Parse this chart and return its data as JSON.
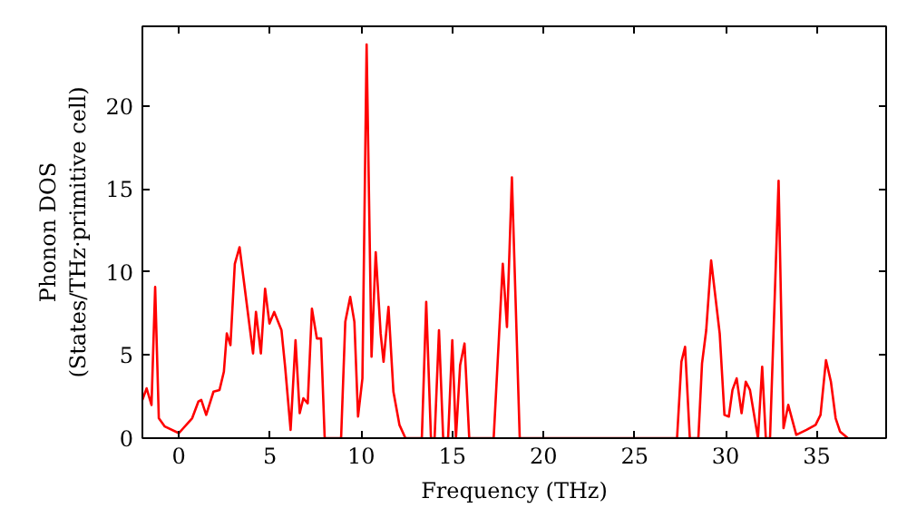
{
  "chart_data": {
    "type": "line",
    "xlabel": "Frequency (THz)",
    "ylabel": "Phonon DOS\n(States/THz·primitive cell)",
    "xlim": [
      -2,
      38.8
    ],
    "ylim": [
      0,
      24.8
    ],
    "xticks": [
      0,
      5,
      10,
      15,
      20,
      25,
      30,
      35
    ],
    "yticks": [
      0,
      5,
      10,
      15,
      20
    ],
    "grid": false,
    "marker": "none",
    "line_style": "solid",
    "series": [
      {
        "color": "#ff0000",
        "x": [
          -2,
          -1.77,
          -1.5,
          -1.3,
          -1.1,
          -0.77,
          0,
          0.73,
          1.07,
          1.23,
          1.5,
          1.9,
          2.23,
          2.47,
          2.63,
          2.83,
          3.07,
          3.33,
          4.07,
          4.23,
          4.5,
          4.73,
          4.97,
          5.23,
          5.63,
          5.83,
          6.13,
          6.4,
          6.63,
          6.83,
          7.07,
          7.3,
          7.57,
          7.8,
          8.0,
          8.9,
          9.13,
          9.4,
          9.63,
          9.83,
          10.07,
          10.3,
          10.57,
          10.8,
          11.07,
          11.23,
          11.5,
          11.77,
          12.1,
          12.43,
          13.33,
          13.57,
          13.83,
          14.03,
          14.27,
          14.5,
          14.77,
          15.0,
          15.2,
          15.43,
          15.67,
          15.93,
          17.27,
          17.77,
          18.0,
          18.27,
          18.7,
          27.33,
          27.57,
          27.77,
          28.03,
          28.5,
          28.7,
          28.93,
          29.2,
          29.67,
          29.93,
          30.17,
          30.37,
          30.6,
          30.87,
          31.1,
          31.33,
          31.77,
          32.0,
          32.2,
          32.43,
          32.9,
          33.17,
          33.43,
          33.87,
          34.43,
          34.93,
          35.2,
          35.5,
          35.77,
          36.03,
          36.27,
          36.7
        ],
        "values": [
          2.3,
          3.0,
          2.0,
          9.1,
          1.2,
          0.7,
          0.3,
          1.2,
          2.2,
          2.3,
          1.4,
          2.8,
          2.9,
          4.0,
          6.3,
          5.6,
          10.5,
          11.5,
          5.1,
          7.6,
          5.1,
          9.0,
          6.9,
          7.6,
          6.5,
          4.3,
          0.5,
          5.9,
          1.5,
          2.4,
          2.1,
          7.8,
          6.0,
          6.0,
          0,
          0,
          7.0,
          8.5,
          7.0,
          1.3,
          3.6,
          23.7,
          4.9,
          11.2,
          6.3,
          4.6,
          7.9,
          2.8,
          0.8,
          0,
          0,
          8.2,
          0,
          0,
          6.5,
          0,
          0,
          5.9,
          0,
          4.4,
          5.7,
          0,
          0,
          10.5,
          6.7,
          15.7,
          0,
          0,
          4.6,
          5.5,
          0,
          0,
          4.5,
          6.5,
          10.7,
          6.3,
          1.4,
          1.3,
          2.9,
          3.6,
          1.5,
          3.4,
          2.9,
          0,
          4.3,
          0,
          0,
          15.5,
          0.6,
          2.0,
          0.2,
          0.5,
          0.8,
          1.4,
          4.7,
          3.4,
          1.2,
          0.4,
          0
        ]
      }
    ]
  }
}
